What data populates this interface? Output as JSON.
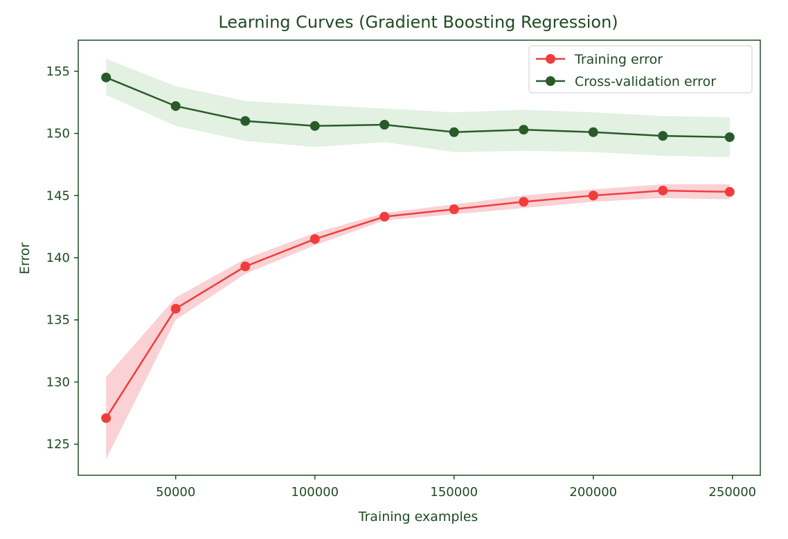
{
  "chart_data": {
    "type": "line",
    "title": "Learning Curves (Gradient Boosting Regression)",
    "xlabel": "Training examples",
    "ylabel": "Error",
    "xlim": [
      15000,
      260000
    ],
    "ylim": [
      122.5,
      157.5
    ],
    "xticks": [
      50000,
      100000,
      150000,
      200000,
      250000
    ],
    "yticks": [
      125,
      130,
      135,
      140,
      145,
      150,
      155
    ],
    "grid": false,
    "legend_position": "top-right",
    "x": [
      25000,
      50000,
      75000,
      100000,
      125000,
      150000,
      175000,
      200000,
      225000,
      249000
    ],
    "series": [
      {
        "name": "Training error",
        "color": "#ef3d3d",
        "band_color": "#f9c9cd",
        "values": [
          127.1,
          135.9,
          139.3,
          141.5,
          143.3,
          143.9,
          144.5,
          145.0,
          145.4,
          145.3
        ],
        "band_lower": [
          123.8,
          135.0,
          138.7,
          141.0,
          143.0,
          143.5,
          144.0,
          144.5,
          144.8,
          144.7
        ],
        "band_upper": [
          130.4,
          136.8,
          139.9,
          142.0,
          143.6,
          144.3,
          145.0,
          145.5,
          145.9,
          145.9
        ]
      },
      {
        "name": "Cross-validation error",
        "color": "#2a5a2a",
        "band_color": "#ddeedd",
        "values": [
          154.5,
          152.2,
          151.0,
          150.6,
          150.7,
          150.1,
          150.3,
          150.1,
          149.8,
          149.7
        ],
        "band_lower": [
          153.1,
          150.6,
          149.4,
          148.9,
          149.3,
          148.5,
          148.6,
          148.5,
          148.2,
          148.1
        ],
        "band_upper": [
          156.0,
          153.8,
          152.6,
          152.3,
          152.0,
          151.7,
          151.9,
          151.7,
          151.4,
          151.3
        ]
      }
    ]
  }
}
